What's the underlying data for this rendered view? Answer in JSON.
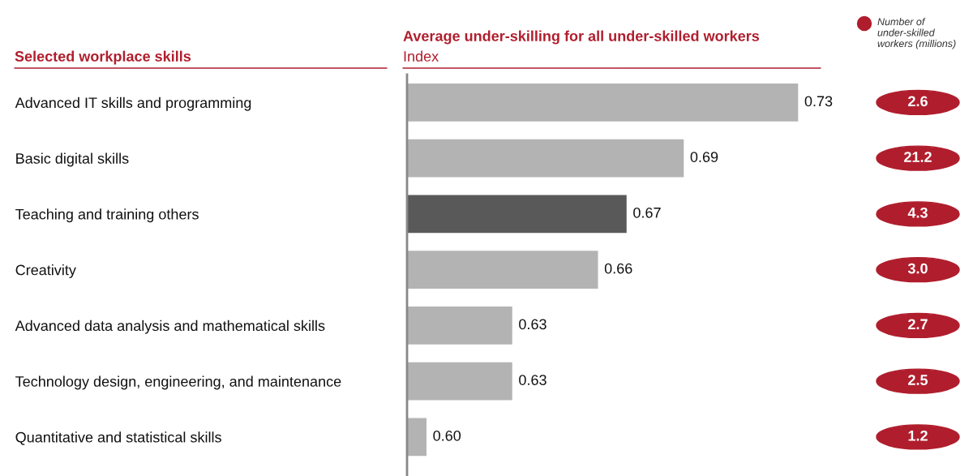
{
  "chart_data": {
    "type": "bar",
    "orientation": "horizontal",
    "title": "Average under-skilling for all under-skilled workers",
    "subtitle": "Index",
    "ylabel": "Selected workplace skills",
    "categories": [
      "Advanced IT skills and programming",
      "Basic digital skills",
      "Teaching and training others",
      "Creativity",
      "Advanced data analysis and mathematical skills",
      "Technology design, engineering, and maintenance",
      "Quantitative and statistical skills"
    ],
    "values": [
      0.73,
      0.69,
      0.67,
      0.66,
      0.63,
      0.63,
      0.6
    ],
    "xlim": [
      0.593,
      0.73
    ],
    "value_labels": [
      "0.73",
      "0.69",
      "0.67",
      "0.66",
      "0.63",
      "0.63",
      "0.60"
    ],
    "colors": [
      "#b3b3b3",
      "#b3b3b3",
      "#595959",
      "#b3b3b3",
      "#b3b3b3",
      "#b3b3b3",
      "#b3b3b3"
    ],
    "tick_labels": "y",
    "grid": false,
    "annotations": [
      "Number of under-skilled workers (millions)",
      "2.6",
      "21.2",
      "4.3",
      "3.0",
      "2.7",
      "2.5",
      "1.2"
    ]
  }
}
